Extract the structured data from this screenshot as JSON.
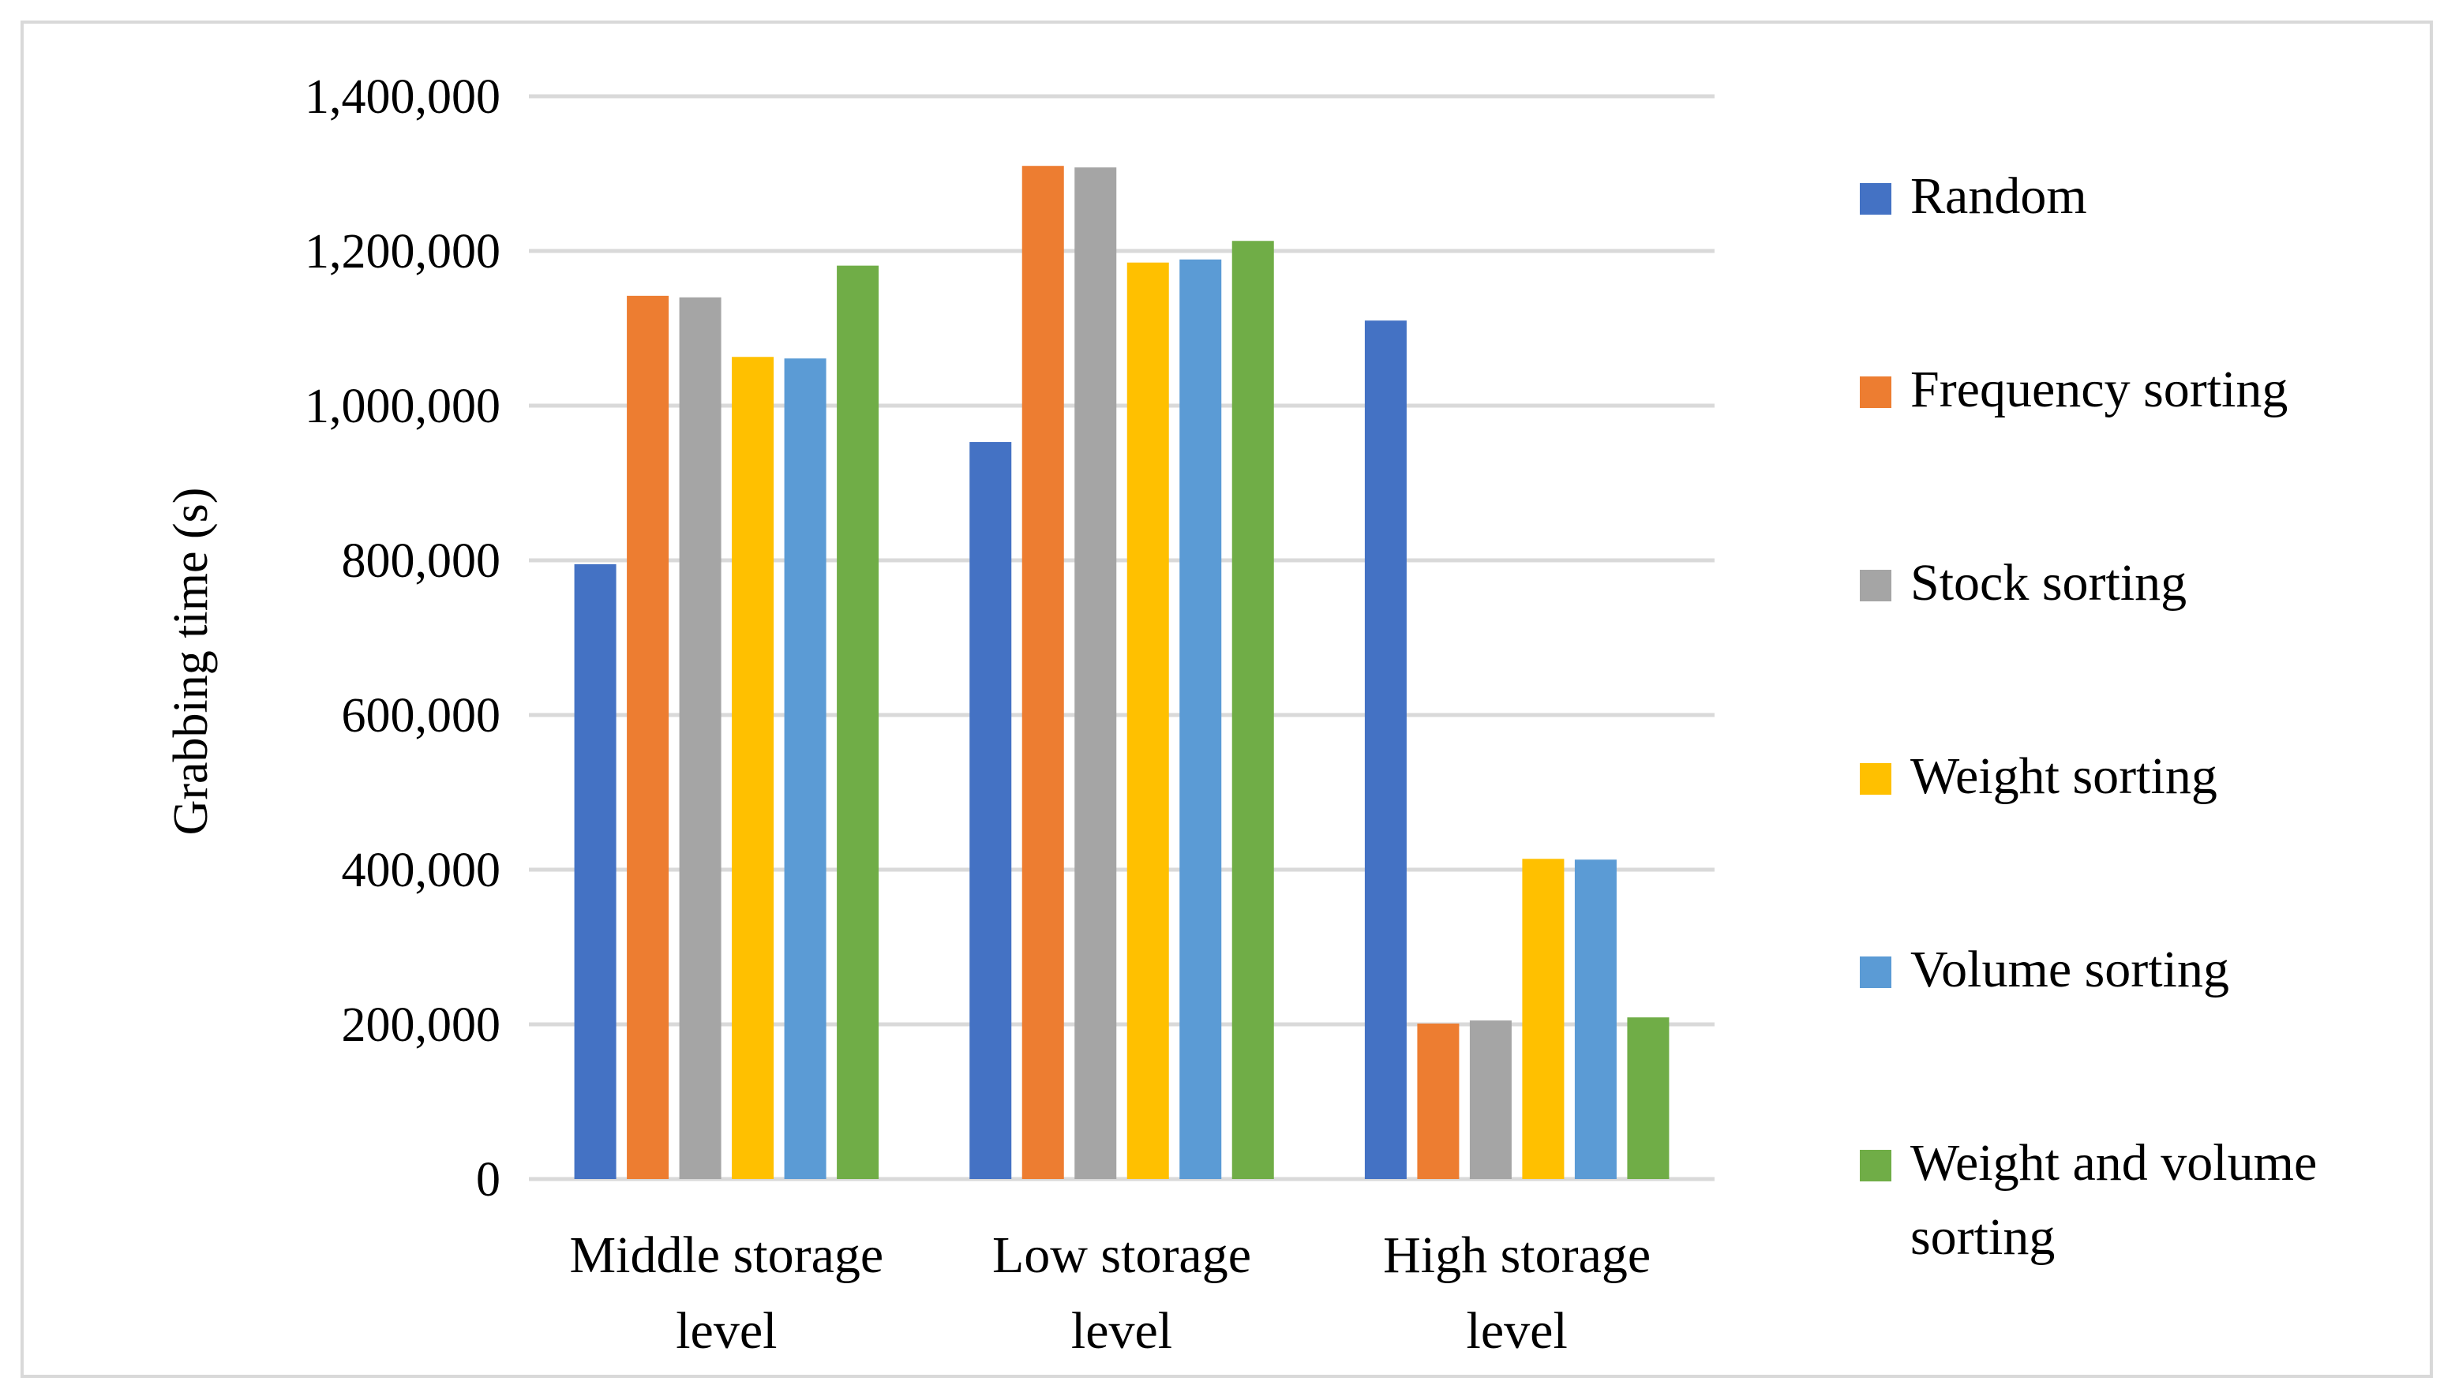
{
  "chart_data": {
    "type": "bar",
    "title": "",
    "xlabel": "",
    "ylabel": "Grabbing time (s)",
    "ylim": [
      0,
      1400000
    ],
    "yticks": [
      0,
      200000,
      400000,
      600000,
      800000,
      1000000,
      1200000,
      1400000
    ],
    "ytick_labels": [
      "0",
      "200,000",
      "400,000",
      "600,000",
      "800,000",
      "1,000,000",
      "1,200,000",
      "1,400,000"
    ],
    "grid": true,
    "legend_position": "right",
    "categories": [
      [
        "Middle storage",
        "level"
      ],
      [
        "Low storage",
        "level"
      ],
      [
        "High storage",
        "level"
      ]
    ],
    "series": [
      {
        "name": [
          "Random"
        ],
        "color": "#4472c4",
        "values": [
          795000,
          953000,
          1110000
        ]
      },
      {
        "name": [
          "Frequency sorting"
        ],
        "color": "#ed7d31",
        "values": [
          1142000,
          1310000,
          201000
        ]
      },
      {
        "name": [
          "Stock sorting"
        ],
        "color": "#a5a5a5",
        "values": [
          1140000,
          1308000,
          205000
        ]
      },
      {
        "name": [
          "Weight sorting"
        ],
        "color": "#ffc000",
        "values": [
          1063000,
          1185000,
          414000
        ]
      },
      {
        "name": [
          "Volume sorting"
        ],
        "color": "#5b9bd5",
        "values": [
          1061000,
          1189000,
          413000
        ]
      },
      {
        "name": [
          "Weight and volume",
          "sorting"
        ],
        "color": "#70ad47",
        "values": [
          1181000,
          1213000,
          209000
        ]
      }
    ]
  }
}
